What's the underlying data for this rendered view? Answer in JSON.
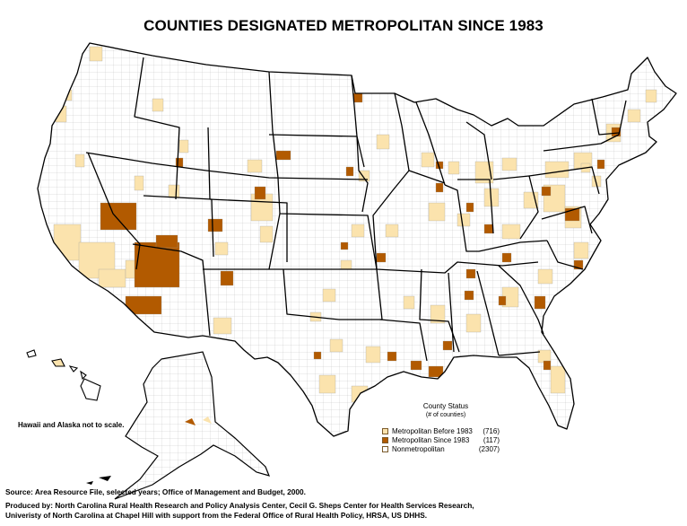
{
  "title": "COUNTIES DESIGNATED METROPOLITAN SINCE 1983",
  "scale_note": "Hawaii and Alaska not to scale.",
  "legend": {
    "heading": "County Status",
    "subheading": "(# of counties)",
    "items": [
      {
        "label": "Metropolitan Before 1983",
        "count": "(716)",
        "color": "#fbe3ad"
      },
      {
        "label": "Metropolitan Since 1983",
        "count": "(117)",
        "color": "#b25a00"
      },
      {
        "label": "Nonmetropolitan",
        "count": "(2307)",
        "color": "#ffffff"
      }
    ]
  },
  "footer": {
    "source": "Source: Area Resource File, selected years; Office of Management and Budget, 2000.",
    "producer_line1": "Produced by: North Carolina Rural Health Research and Policy Analysis Center, Cecil G. Sheps Center for Health Services Research,",
    "producer_line2": "Univeristy of North Carolina at Chapel Hill with support from the Federal Office of Rural Health Policy, HRSA, US DHHS."
  },
  "colors": {
    "metro_before": "#fbe3ad",
    "metro_since": "#b25a00",
    "nonmetro": "#ffffff",
    "border": "#000000",
    "county_line": "#9a9a9a"
  }
}
